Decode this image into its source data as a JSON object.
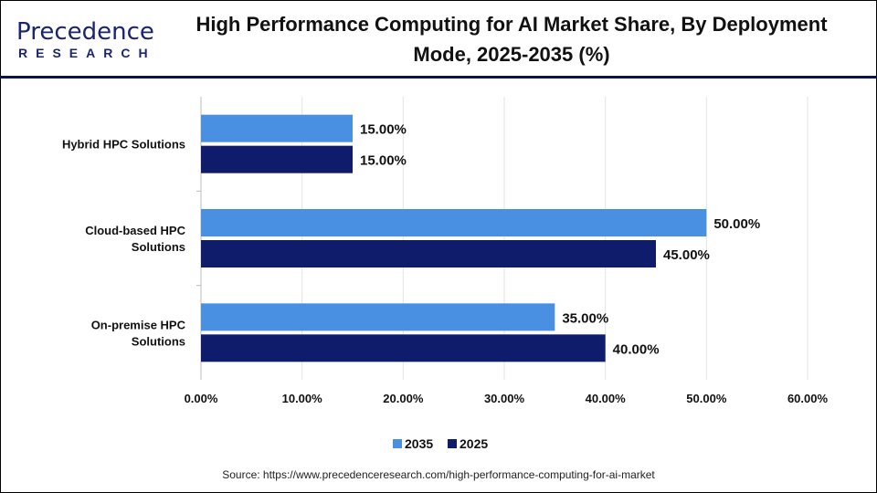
{
  "logo": {
    "main": "Precedence",
    "sub": "RESEARCH"
  },
  "chart_data": {
    "type": "bar",
    "orientation": "horizontal",
    "title": "High Performance Computing for AI Market Share, By Deployment Mode, 2025-2035 (%)",
    "categories": [
      "Hybrid HPC Solutions",
      "Cloud-based HPC Solutions",
      "On-premise HPC Solutions"
    ],
    "series": [
      {
        "name": "2035",
        "color": "#4a90e2",
        "values": [
          15,
          50,
          35
        ],
        "labels": [
          "15.00%",
          "50.00%",
          "35.00%"
        ]
      },
      {
        "name": "2025",
        "color": "#0f1c6b",
        "values": [
          15,
          45,
          40
        ],
        "labels": [
          "15.00%",
          "45.00%",
          "40.00%"
        ]
      }
    ],
    "xlim": [
      0,
      60
    ],
    "xticks": [
      0,
      10,
      20,
      30,
      40,
      50,
      60
    ],
    "xtick_labels": [
      "0.00%",
      "10.00%",
      "20.00%",
      "30.00%",
      "40.00%",
      "50.00%",
      "60.00%"
    ],
    "grid": "vertical",
    "legend_position": "bottom",
    "xlabel": "",
    "ylabel": ""
  },
  "source": "Source: https://www.precedenceresearch.com/high-performance-computing-for-ai-market"
}
